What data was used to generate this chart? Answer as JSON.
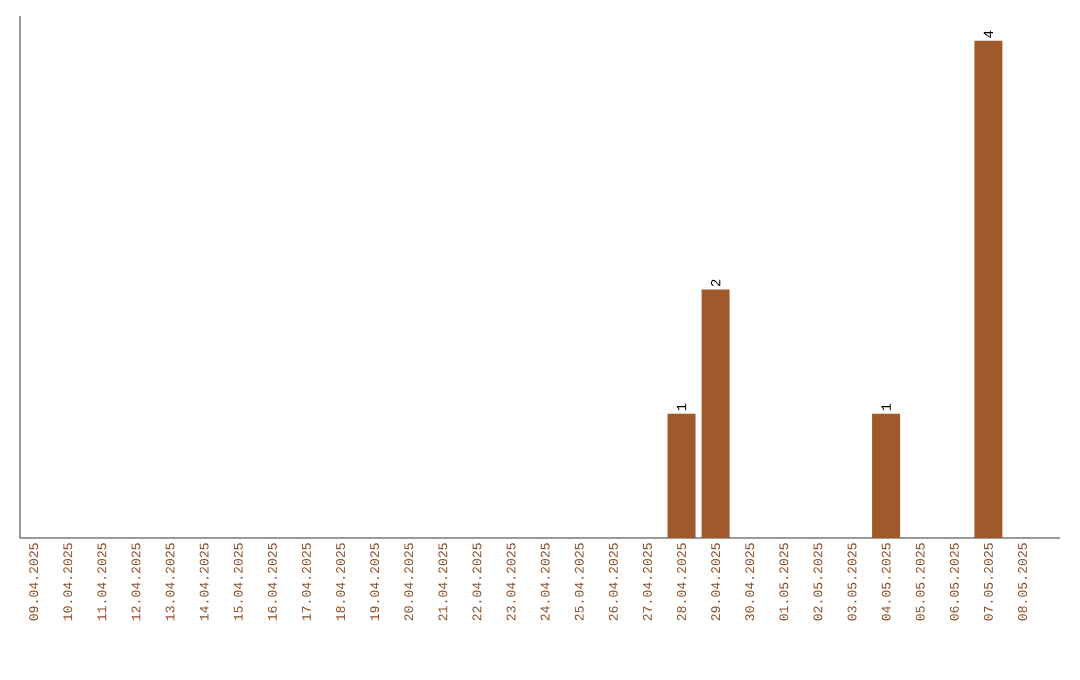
{
  "chart_data": {
    "type": "bar",
    "categories": [
      "09.04.2025",
      "10.04.2025",
      "11.04.2025",
      "12.04.2025",
      "13.04.2025",
      "14.04.2025",
      "15.04.2025",
      "16.04.2025",
      "17.04.2025",
      "18.04.2025",
      "19.04.2025",
      "20.04.2025",
      "21.04.2025",
      "22.04.2025",
      "23.04.2025",
      "24.04.2025",
      "25.04.2025",
      "26.04.2025",
      "27.04.2025",
      "28.04.2025",
      "29.04.2025",
      "30.04.2025",
      "01.05.2025",
      "02.05.2025",
      "03.05.2025",
      "04.05.2025",
      "05.05.2025",
      "06.05.2025",
      "07.05.2025",
      "08.05.2025"
    ],
    "values": [
      null,
      null,
      null,
      null,
      null,
      null,
      null,
      null,
      null,
      null,
      null,
      null,
      null,
      null,
      null,
      null,
      null,
      null,
      null,
      1,
      2,
      null,
      null,
      null,
      null,
      1,
      null,
      null,
      4,
      null
    ],
    "data_labels": true,
    "color": "#a0592a",
    "ylim": [
      0,
      4.2
    ]
  }
}
